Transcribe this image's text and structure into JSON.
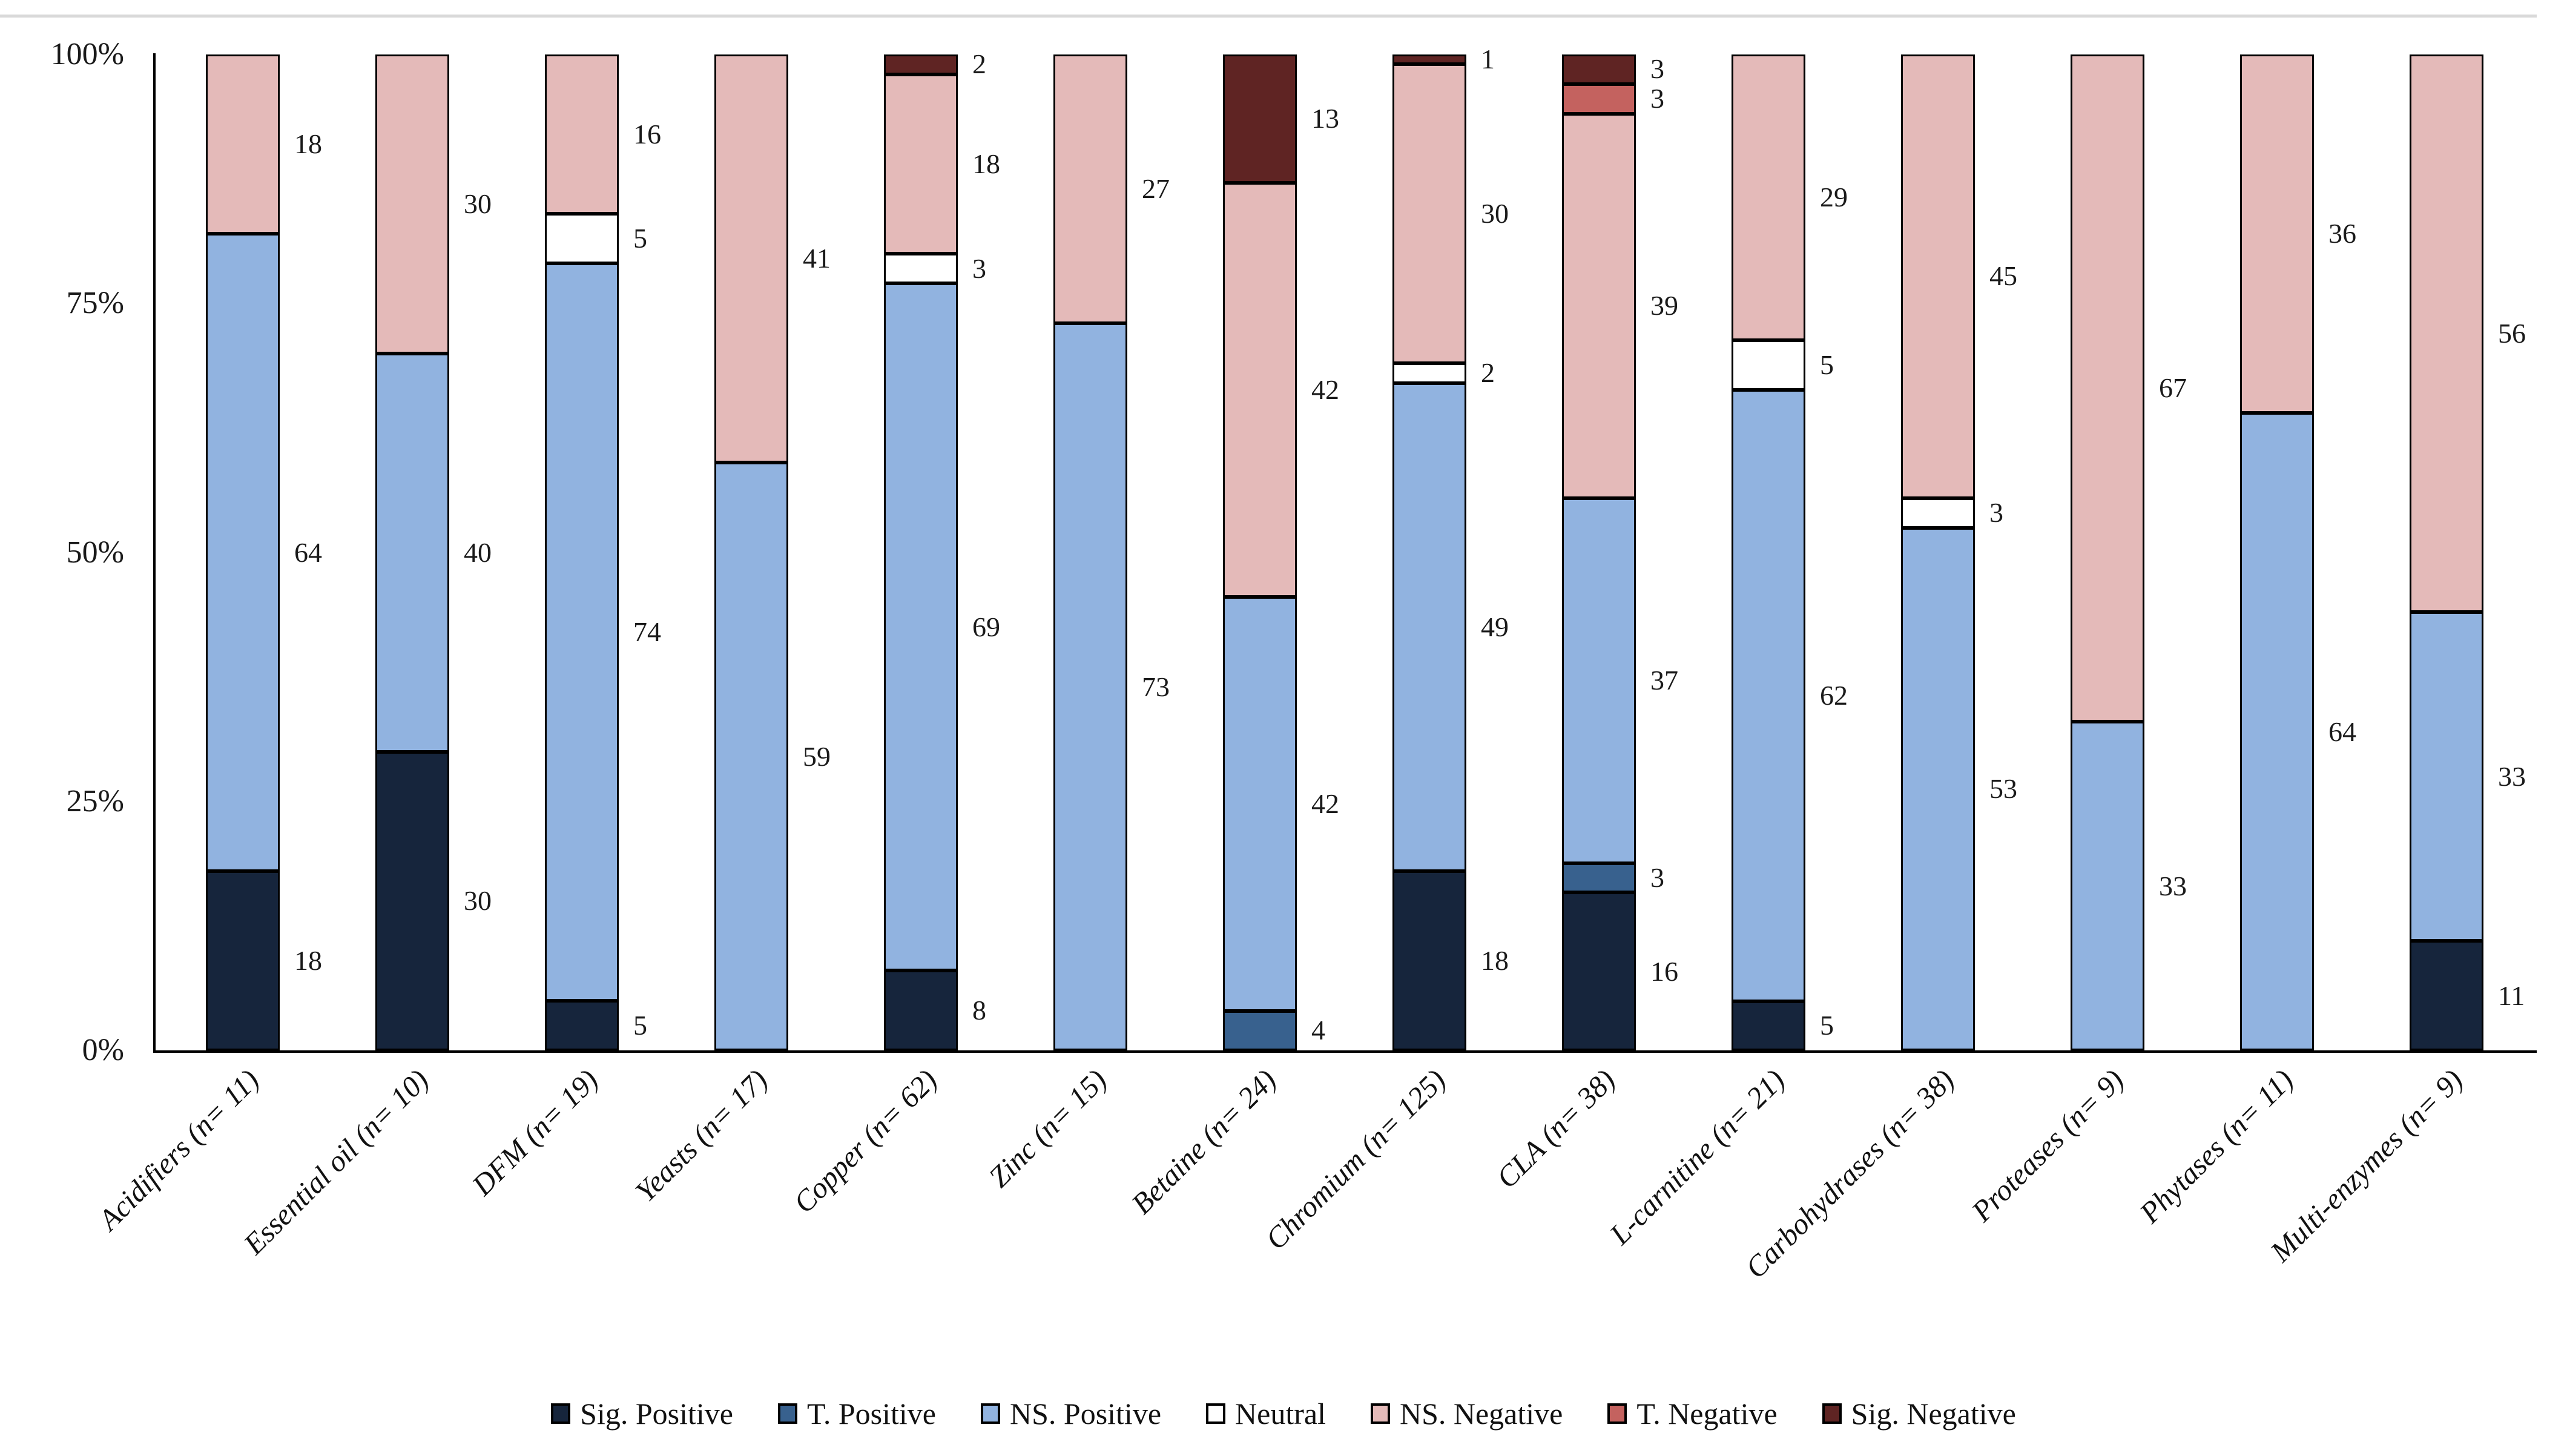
{
  "figure": {
    "title": "",
    "y_axis_labels": [
      "100%",
      "75%",
      "50%",
      "25%",
      "0%"
    ],
    "axis_color": "#000000",
    "top_rule_color": "#d9d9d9",
    "background": "#ffffff"
  },
  "chart_data": {
    "type": "bar",
    "subtype": "stacked-percent-column",
    "title": "",
    "xlabel": "",
    "ylabel": "",
    "ylim": [
      0,
      100
    ],
    "grid": false,
    "legend_position": "bottom",
    "y_ticks": [
      "0%",
      "25%",
      "50%",
      "75%",
      "100%"
    ],
    "categories": [
      "Acidifiers (n= 11)",
      "Essential oil (n= 10)",
      "DFM (n= 19)",
      "Yeasts (n= 17)",
      "Copper (n= 62)",
      "Zinc (n= 15)",
      "Betaine (n= 24)",
      "Chromium (n= 125)",
      "CLA (n= 38)",
      "L-carnitine (n= 21)",
      "Carbohydrases (n= 38)",
      "Proteases (n= 9)",
      "Phytases (n= 11)",
      "Multi-enzymes (n= 9)"
    ],
    "series": [
      {
        "name": "Sig. Positive",
        "color": "#16253c",
        "values": [
          18,
          30,
          5,
          0,
          8,
          0,
          0,
          18,
          16,
          5,
          0,
          0,
          0,
          11
        ]
      },
      {
        "name": "T. Positive",
        "color": "#38618e",
        "values": [
          0,
          0,
          0,
          0,
          0,
          0,
          4,
          0,
          3,
          0,
          0,
          0,
          0,
          0
        ]
      },
      {
        "name": "NS. Positive",
        "color": "#91b3e0",
        "values": [
          64,
          40,
          74,
          59,
          69,
          73,
          42,
          49,
          37,
          62,
          53,
          33,
          64,
          33
        ]
      },
      {
        "name": "Neutral",
        "color": "#ffffff",
        "values": [
          0,
          0,
          5,
          0,
          3,
          0,
          0,
          2,
          0,
          5,
          3,
          0,
          0,
          0
        ]
      },
      {
        "name": "NS. Negative",
        "color": "#e4bab9",
        "values": [
          18,
          30,
          16,
          41,
          18,
          27,
          42,
          30,
          39,
          29,
          45,
          67,
          36,
          56
        ]
      },
      {
        "name": "T. Negative",
        "color": "#c4625f",
        "values": [
          0,
          0,
          0,
          0,
          0,
          0,
          0,
          0,
          3,
          0,
          0,
          0,
          0,
          0
        ]
      },
      {
        "name": "Sig. Negative",
        "color": "#5f2423",
        "values": [
          0,
          0,
          0,
          0,
          2,
          0,
          13,
          1,
          3,
          0,
          0,
          0,
          0,
          0
        ]
      }
    ],
    "annotations": "Each non-zero segment value is printed to the right of its bar at the segment midpoint; zeros are not shown."
  }
}
